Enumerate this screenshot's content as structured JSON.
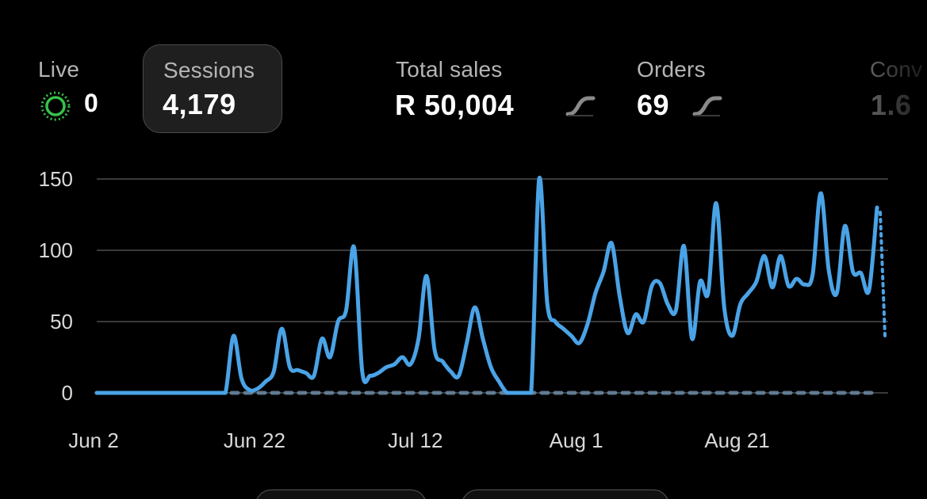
{
  "metrics": {
    "live": {
      "label": "Live",
      "value": "0"
    },
    "sessions": {
      "label": "Sessions",
      "value": "4,179"
    },
    "total_sales": {
      "label": "Total sales",
      "value": "R 50,004"
    },
    "orders": {
      "label": "Orders",
      "value": "69"
    },
    "conversion": {
      "label": "Conv",
      "value": "1.6"
    }
  },
  "colors": {
    "line": "#4aa3e6",
    "dotted_prev": "#6b8aa6",
    "live_dot": "#37c24a",
    "grid": "#3a3a3a"
  },
  "icons": {
    "live": "live-pulse-icon",
    "sales_trend": "sparkline-icon",
    "orders_trend": "sparkline-icon"
  },
  "chart_data": {
    "type": "line",
    "ylim": [
      0,
      150
    ],
    "yticks": [
      "0",
      "50",
      "100",
      "150"
    ],
    "xticks": [
      "Jun 2",
      "Jun 22",
      "Jul 12",
      "Aug 1",
      "Aug 21"
    ],
    "grid": true,
    "series": [
      {
        "values": [
          0,
          0,
          0,
          0,
          0,
          0,
          0,
          0,
          0,
          0,
          0,
          0,
          0,
          0,
          0,
          0,
          0,
          40,
          10,
          2,
          3,
          8,
          15,
          45,
          18,
          16,
          14,
          12,
          38,
          25,
          50,
          58,
          102,
          15,
          12,
          14,
          18,
          20,
          25,
          20,
          38,
          82,
          30,
          22,
          15,
          12,
          35,
          60,
          38,
          18,
          8,
          0,
          0,
          0,
          0,
          150,
          63,
          50,
          45,
          40,
          35,
          48,
          70,
          85,
          105,
          68,
          42,
          55,
          50,
          75,
          77,
          62,
          58,
          103,
          38,
          78,
          70,
          133,
          60,
          40,
          62,
          70,
          78,
          96,
          74,
          96,
          75,
          80,
          76,
          83,
          140,
          86,
          70,
          117,
          85,
          84,
          72,
          130
        ]
      },
      {
        "values": [
          0,
          0,
          0,
          0,
          0,
          0,
          0,
          0,
          0,
          0,
          0,
          0,
          0,
          0,
          0,
          0,
          0,
          0,
          0,
          0,
          0,
          0,
          0,
          0,
          0,
          0,
          0,
          0,
          0,
          0,
          0,
          0,
          0,
          0,
          0,
          0,
          0,
          0,
          0,
          0,
          0,
          0,
          0,
          0,
          0,
          0,
          0,
          0,
          0,
          0,
          0,
          0,
          0,
          0,
          0,
          0,
          0,
          0,
          0,
          0,
          0,
          0,
          0,
          0,
          0,
          0,
          0,
          0,
          0,
          0,
          0,
          0,
          0,
          0,
          0,
          0,
          0,
          0,
          0,
          0,
          0,
          0,
          0,
          0,
          0,
          0,
          0,
          0,
          0,
          0,
          0,
          0,
          0,
          0,
          0,
          0,
          0,
          0
        ]
      }
    ]
  }
}
